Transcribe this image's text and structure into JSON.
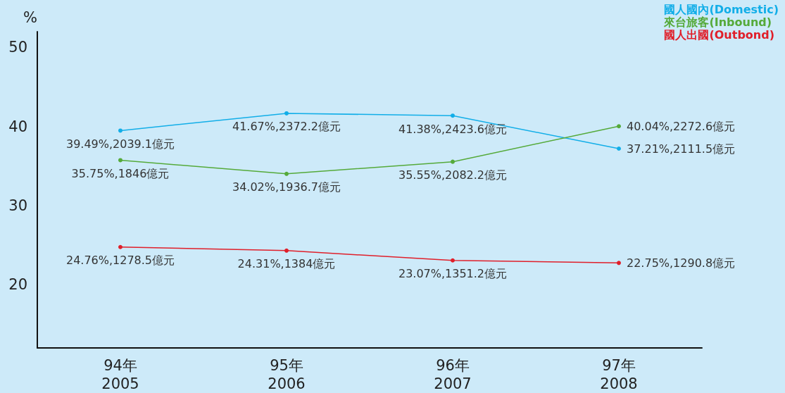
{
  "chart_data": {
    "type": "line",
    "ylabel": "%",
    "categories": [
      "94年\n2005",
      "95年\n2006",
      "96年\n2007",
      "97年\n2008"
    ],
    "series": [
      {
        "name": "國人國內(Domestic)",
        "color": "#12aee8",
        "values": [
          39.49,
          41.67,
          41.38,
          37.21
        ],
        "value_labels": [
          "39.49%,2039.1億元",
          "41.67%,2372.2億元",
          "41.38%,2423.6億元",
          "37.21%,2111.5億元"
        ]
      },
      {
        "name": "來台旅客(Inbound)",
        "color": "#55aa3a",
        "values": [
          35.75,
          34.02,
          35.55,
          40.04
        ],
        "value_labels": [
          "35.75%,1846億元",
          "34.02%,1936.7億元",
          "35.55%,2082.2億元",
          "40.04%,2272.6億元"
        ]
      },
      {
        "name": "國人出國(Outbond)",
        "color": "#e01f2a",
        "values": [
          24.76,
          24.31,
          23.07,
          22.75
        ],
        "value_labels": [
          "24.76%,1278.5億元",
          "24.31%,1384億元",
          "23.07%,1351.2億元",
          "22.75%,1290.8億元"
        ]
      }
    ],
    "ylim": [
      12,
      52
    ],
    "yticks": [
      20,
      30,
      40,
      50
    ],
    "grid": false,
    "legend": "top right",
    "marker": "circle",
    "line_style": "solid"
  }
}
